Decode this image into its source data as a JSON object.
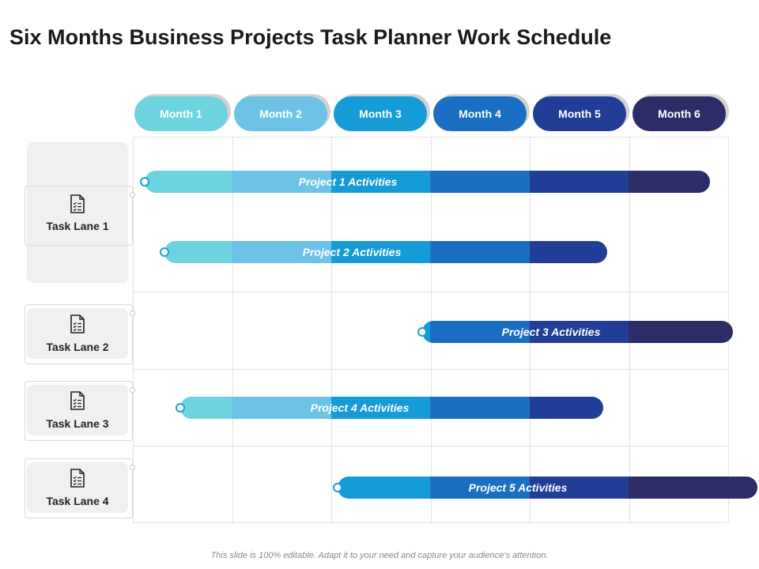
{
  "title": "Six Months Business Projects Task Planner Work Schedule",
  "months": [
    {
      "label": "Month 1",
      "color": "#6dd3de"
    },
    {
      "label": "Month 2",
      "color": "#6cc3e6"
    },
    {
      "label": "Month 3",
      "color": "#159bd6"
    },
    {
      "label": "Month 4",
      "color": "#1b6fc2"
    },
    {
      "label": "Month 5",
      "color": "#213e96"
    },
    {
      "label": "Month 6",
      "color": "#2c2d66"
    }
  ],
  "lanes": [
    {
      "label": "Task Lane 1",
      "icon": "document-checklist-icon"
    },
    {
      "label": "Task Lane 2",
      "icon": "document-checklist-icon"
    },
    {
      "label": "Task Lane 3",
      "icon": "document-checklist-icon"
    },
    {
      "label": "Task Lane 4",
      "icon": "document-checklist-icon"
    }
  ],
  "projects": [
    {
      "label": "Project 1 Activities",
      "start_month": 0.12,
      "end_month": 5.82
    },
    {
      "label": "Project 2 Activities",
      "start_month": 0.32,
      "end_month": 4.78
    },
    {
      "label": "Project 3 Activities",
      "start_month": 2.92,
      "end_month": 6.05
    },
    {
      "label": "Project 4 Activities",
      "start_month": 0.48,
      "end_month": 4.74
    },
    {
      "label": "Project 5 Activities",
      "start_month": 2.06,
      "end_month": 6.3
    }
  ],
  "footer": "This slide is 100% editable. Adapt it to your need and capture your audience’s attention."
}
